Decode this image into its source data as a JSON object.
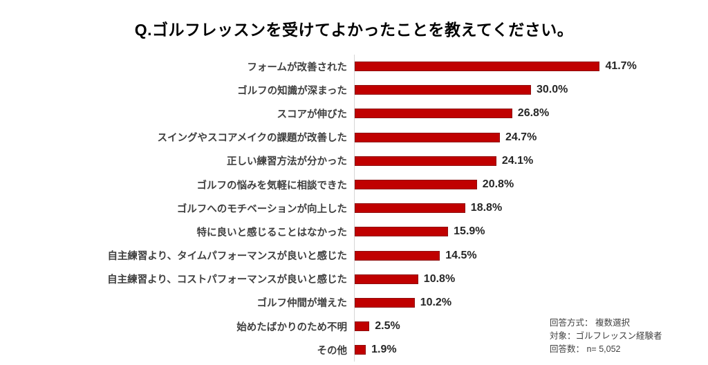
{
  "chart_data": {
    "type": "bar",
    "orientation": "horizontal",
    "title": "Q.ゴルフレッスンを受けてよかったことを教えてください。",
    "categories": [
      "フォームが改善された",
      "ゴルフの知識が深まった",
      "スコアが伸びた",
      "スイングやスコアメイクの課題が改善した",
      "正しい練習方法が分かった",
      "ゴルフの悩みを気軽に相談できた",
      "ゴルフへのモチベーションが向上した",
      "特に良いと感じることはなかった",
      "自主練習より、タイムパフォーマンスが良いと感じた",
      "自主練習より、コストパフォーマンスが良いと感じた",
      "ゴルフ仲間が増えた",
      "始めたばかりのため不明",
      "その他"
    ],
    "values": [
      41.7,
      30.0,
      26.8,
      24.7,
      24.1,
      20.8,
      18.8,
      15.9,
      14.5,
      10.8,
      10.2,
      2.5,
      1.9
    ],
    "value_labels": [
      "41.7%",
      "30.0%",
      "26.8%",
      "24.7%",
      "24.1%",
      "20.8%",
      "18.8%",
      "15.9%",
      "14.5%",
      "10.8%",
      "10.2%",
      "2.5%",
      "1.9%"
    ],
    "xlabel": "",
    "ylabel": "",
    "xlim": [
      0,
      45
    ],
    "grid": "off",
    "legend": "none",
    "bar_color": "#c00000",
    "axis_line_color": "#d6d6d6"
  },
  "note": {
    "method": "回答方式： 複数選択",
    "target": "対象：ゴルフレッスン経験者",
    "count": "回答数： n= 5,052"
  }
}
